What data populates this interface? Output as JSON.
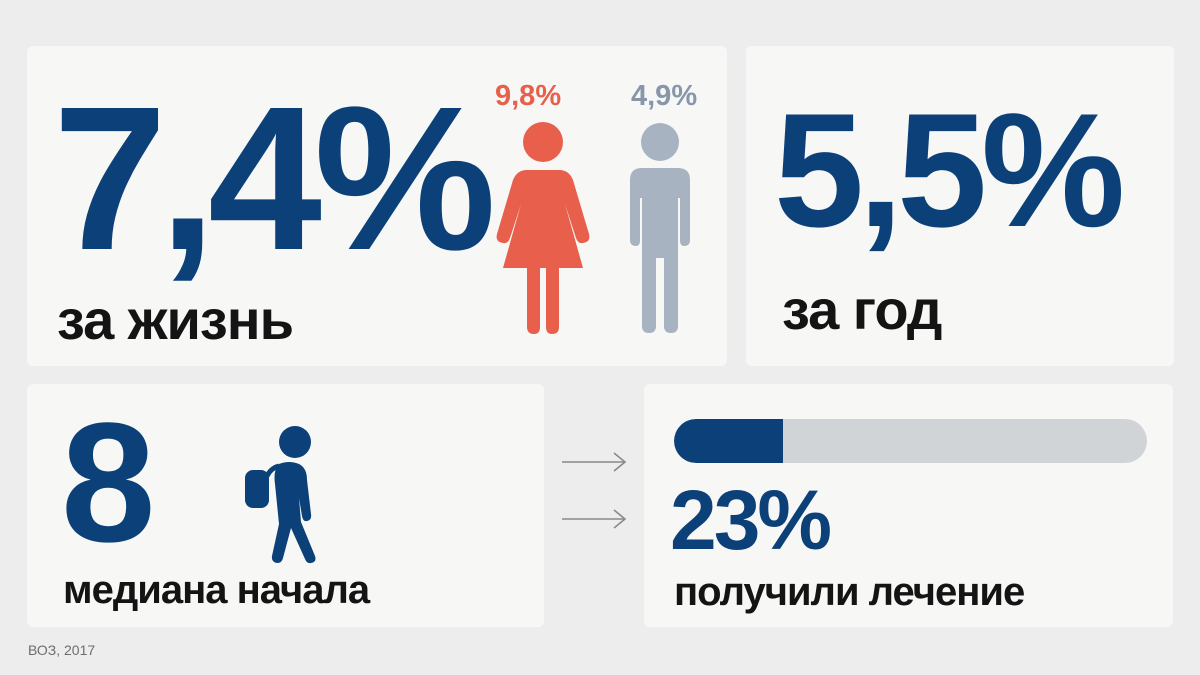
{
  "lifetime": {
    "value": "7,4%",
    "caption": "за жизнь",
    "female_pct": "9,8%",
    "male_pct": "4,9%",
    "female_icon": "woman-icon",
    "male_icon": "man-icon",
    "female_color": "#e8604c",
    "male_color": "#a8b3c1"
  },
  "year": {
    "value": "5,5%",
    "caption": "за год"
  },
  "onset": {
    "value": "8",
    "caption": "медиана начала",
    "icon": "student-with-backpack-icon"
  },
  "treatment": {
    "value": "23%",
    "caption": "получили лечение",
    "progress": 0.23
  },
  "arrows": [
    "arrow-right-icon",
    "arrow-right-icon"
  ],
  "source": "ВОЗ, 2017",
  "colors": {
    "accent": "#0c4078",
    "text": "#141414",
    "track": "#d1d4d6",
    "background": "#ededed",
    "card": "#f7f7f5"
  }
}
